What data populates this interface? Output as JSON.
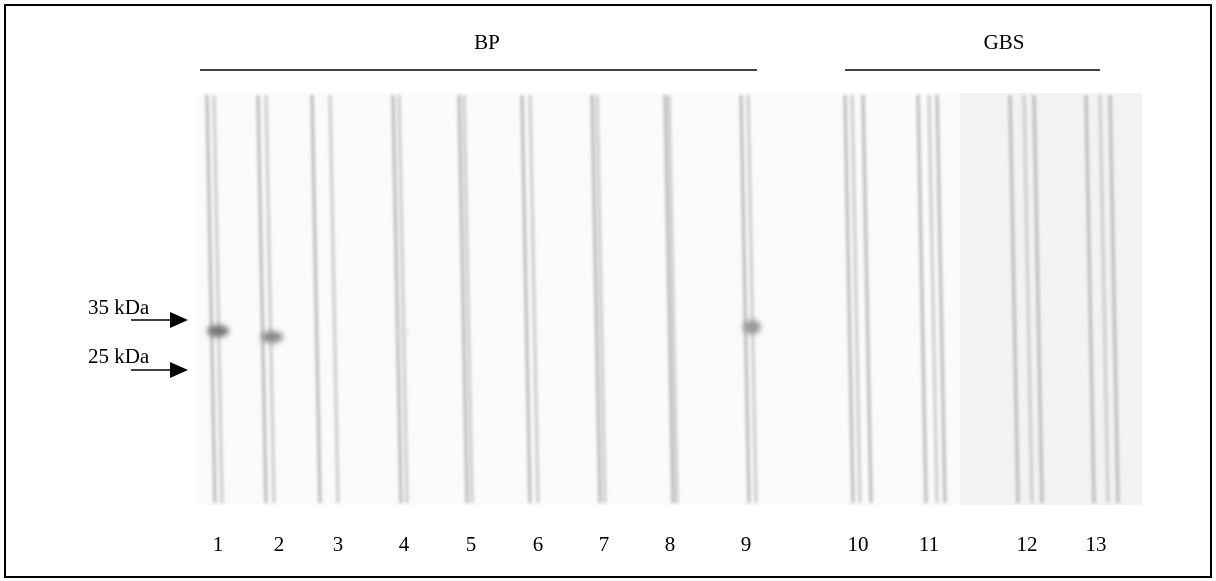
{
  "groups": [
    {
      "label": "BP"
    },
    {
      "label": "GBS"
    }
  ],
  "markers": [
    "35 kDa",
    "25 kDa"
  ],
  "lanes": [
    "1",
    "2",
    "3",
    "4",
    "5",
    "6",
    "7",
    "8",
    "9",
    "10",
    "11",
    "12",
    "13"
  ]
}
